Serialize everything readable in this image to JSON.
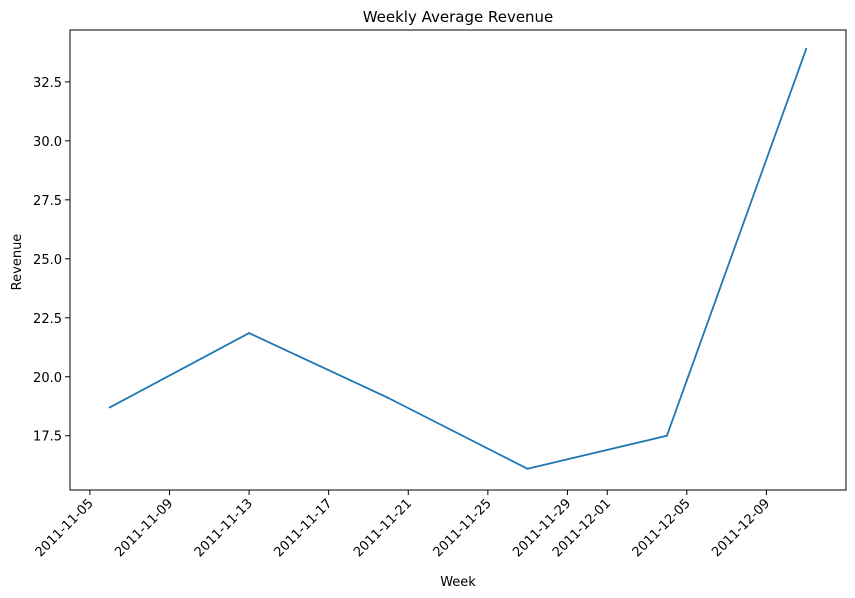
{
  "chart_data": {
    "type": "line",
    "title": "Weekly Average Revenue",
    "xlabel": "Week",
    "ylabel": "Revenue",
    "x_tick_labels": [
      "2011-11-05",
      "2011-11-09",
      "2011-11-13",
      "2011-11-17",
      "2011-11-21",
      "2011-11-25",
      "2011-11-29",
      "2011-12-01",
      "2011-12-05",
      "2011-12-09"
    ],
    "y_tick_labels": [
      "17.5",
      "20.0",
      "22.5",
      "25.0",
      "27.5",
      "30.0",
      "32.5"
    ],
    "xlim": [
      "2011-11-04",
      "2011-12-13"
    ],
    "ylim": [
      15.2,
      34.7
    ],
    "grid": false,
    "series": [
      {
        "color": "#1f77b4",
        "x": [
          "2011-11-06",
          "2011-11-13",
          "2011-11-20",
          "2011-11-27",
          "2011-12-04",
          "2011-12-11"
        ],
        "y": [
          18.7,
          21.85,
          19.1,
          16.1,
          17.5,
          33.9
        ]
      }
    ]
  }
}
